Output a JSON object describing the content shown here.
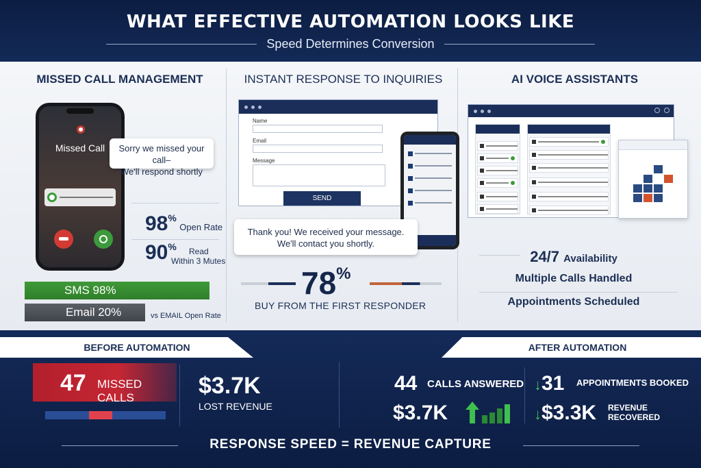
{
  "header": {
    "title": "WHAT EFFECTIVE AUTOMATION LOOKS LIKE",
    "subtitle": "Speed Determines Conversion"
  },
  "missed_call": {
    "title": "MISSED CALL MANAGEMENT",
    "phone_label": "Missed Call",
    "bubble_line1": "Sorry we missed your call–",
    "bubble_line2": "We'll respond shortly",
    "open_rate_value": "98",
    "open_rate_unit": "%",
    "open_rate_label": "Open Rate",
    "read_value": "90",
    "read_unit": "%",
    "read_label": "Read",
    "read_label2": "Within 3 Mutes",
    "sms_bar": "SMS 98%",
    "email_bar": "Email 20%",
    "vs_label": "vs EMAIL Open Rate",
    "notification_icon": "google-g-icon"
  },
  "instant_response": {
    "title": "INSTANT RESPONSE TO INQUIRIES",
    "form_name": "Name",
    "form_email": "Email",
    "form_message": "Message",
    "send_label": "SEND",
    "reply_line1": "Thank you! We received your message.",
    "reply_line2": "We'll contact you shortly.",
    "stat_value": "78",
    "stat_unit": "%",
    "stat_label": "BUY FROM THE FIRST RESPONDER"
  },
  "voice": {
    "title": "AI VOICE ASSISTANTS",
    "avail_value": "24/7",
    "avail_label": "Availability",
    "line2": "Multiple Calls Handled",
    "line3": "Appointments Scheduled"
  },
  "before": {
    "tab": "BEFORE AUTOMATION",
    "missed_value": "47",
    "missed_label": "MISSED CALLS",
    "lost_value": "$3.7K",
    "lost_label": "LOST REVENUE"
  },
  "after": {
    "tab": "AFTER AUTOMATION",
    "answered_value": "44",
    "answered_label": "CALLS ANSWERED",
    "revenue_value": "$3.7K",
    "appt_value": "31",
    "appt_label": "APPOINTMENTS BOOKED",
    "recovered_value": "$3.3K",
    "recovered_label1": "REVENUE",
    "recovered_label2": "RECOVERED",
    "arrow_glyph": "↓"
  },
  "footer": "RESPONSE SPEED = REVENUE CAPTURE",
  "colors": {
    "navy": "#0f2247",
    "accent_green": "#3f9a38",
    "accent_red": "#c52633"
  }
}
